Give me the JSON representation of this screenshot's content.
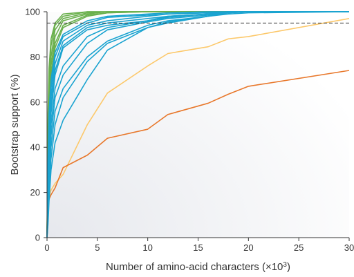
{
  "chart_data": {
    "type": "line",
    "title": "",
    "xlabel": "Number of amino-acid characters (×10",
    "xlabel_sup": "3",
    "xlabel_close": ")",
    "ylabel": "Bootstrap support (%)",
    "xlim": [
      0,
      30
    ],
    "ylim": [
      0,
      100
    ],
    "xticks": [
      0,
      5,
      10,
      15,
      20,
      25,
      30
    ],
    "xtick_labels": [
      "0",
      "5",
      "10",
      "15",
      "20",
      "25",
      "30"
    ],
    "yticks": [
      0,
      20,
      40,
      60,
      80,
      100
    ],
    "ytick_labels": [
      "0",
      "20",
      "40",
      "60",
      "80",
      "100"
    ],
    "threshold": 95,
    "colors": {
      "green": "#6ab04c",
      "blue": "#1aa3d0",
      "yellow": "#fcc86a",
      "orange": "#e8772a",
      "threshold": "#333333",
      "background_gradient_start": "#ffffff",
      "background_gradient_end": "#e6e8ed"
    },
    "x": [
      0,
      0.1,
      0.2,
      0.4,
      0.8,
      1.6,
      4,
      6,
      10,
      12,
      16,
      18,
      20,
      30
    ],
    "series": [
      {
        "group": "green",
        "values": [
          0,
          55,
          75,
          88,
          95,
          99,
          100,
          100,
          100,
          100,
          100,
          100,
          100,
          100
        ]
      },
      {
        "group": "green",
        "values": [
          0,
          48,
          70,
          85,
          94,
          98,
          100,
          100,
          100,
          100,
          100,
          100,
          100,
          100
        ]
      },
      {
        "group": "green",
        "values": [
          0,
          40,
          62,
          80,
          92,
          97,
          99.5,
          100,
          100,
          100,
          100,
          100,
          100,
          100
        ]
      },
      {
        "group": "green",
        "values": [
          0,
          35,
          58,
          76,
          89,
          96,
          99,
          100,
          100,
          100,
          100,
          100,
          100,
          100
        ]
      },
      {
        "group": "green",
        "values": [
          0,
          30,
          52,
          72,
          86,
          94,
          98.5,
          99.5,
          100,
          100,
          100,
          100,
          100,
          100
        ]
      },
      {
        "group": "green",
        "values": [
          0,
          26,
          48,
          68,
          84,
          93,
          98,
          99.5,
          100,
          100,
          100,
          100,
          100,
          100
        ]
      },
      {
        "group": "blue",
        "values": [
          0,
          35,
          55,
          70,
          82,
          90,
          96,
          98,
          99,
          99.5,
          100,
          100,
          100,
          100
        ]
      },
      {
        "group": "blue",
        "values": [
          0,
          30,
          50,
          66,
          80,
          89,
          95,
          97.5,
          98.5,
          99,
          99.5,
          100,
          100,
          100
        ]
      },
      {
        "group": "blue",
        "values": [
          0,
          25,
          45,
          62,
          77,
          87,
          94,
          96,
          98,
          99,
          99.5,
          100,
          100,
          100
        ]
      },
      {
        "group": "blue",
        "values": [
          0,
          20,
          40,
          58,
          74,
          85,
          93,
          95,
          97,
          98,
          99,
          100,
          100,
          100
        ]
      },
      {
        "group": "blue",
        "values": [
          0,
          18,
          36,
          55,
          72,
          84,
          92,
          94,
          96,
          98,
          99,
          100,
          100,
          100
        ]
      },
      {
        "group": "blue",
        "values": [
          0,
          15,
          32,
          50,
          66,
          76,
          89,
          93,
          96,
          97.5,
          99,
          99.5,
          100,
          100
        ]
      },
      {
        "group": "blue",
        "values": [
          0,
          12,
          28,
          45,
          62,
          72,
          86,
          92,
          95.5,
          97,
          98.5,
          99.5,
          100,
          100
        ]
      },
      {
        "group": "blue",
        "values": [
          0,
          10,
          25,
          40,
          56,
          66,
          80,
          87,
          94,
          96,
          98,
          99.5,
          100,
          100
        ]
      },
      {
        "group": "blue",
        "values": [
          0,
          8,
          20,
          35,
          50,
          62,
          78,
          86,
          93,
          95.5,
          98,
          99.5,
          100,
          100
        ]
      },
      {
        "group": "blue",
        "values": [
          0,
          6,
          16,
          30,
          42,
          52,
          70,
          83,
          93,
          95,
          98,
          99,
          99.5,
          100
        ]
      },
      {
        "group": "yellow",
        "values": [
          0,
          15,
          18,
          21,
          24,
          28,
          50,
          64,
          76,
          81.5,
          84.5,
          88,
          89,
          97
        ]
      },
      {
        "group": "orange",
        "values": [
          0,
          14,
          17,
          19,
          22,
          31,
          36.5,
          44,
          48,
          54.5,
          59.5,
          63.5,
          67,
          74
        ]
      }
    ]
  }
}
